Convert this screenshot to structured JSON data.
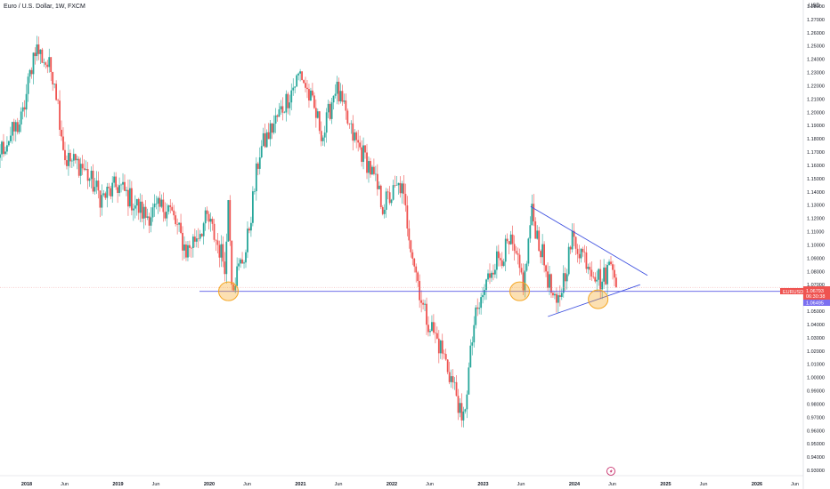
{
  "header": {
    "title": "Euro / U.S. Dollar, 1W, FXCM",
    "currency": "USD"
  },
  "colors": {
    "up": "#26a69a",
    "down": "#ef5350",
    "trendline": "#3f51e0",
    "support": "#5b5be6",
    "highlight": "#f5a623",
    "last_price_bg": "#ef5350",
    "support_label_bg": "#7b6ff0"
  },
  "icons": [
    "lightning-icon"
  ],
  "badges": {
    "symbol": "EURUSD",
    "last_price": "1.06793",
    "countdown": "06:30:38",
    "support_price": "1.06495"
  },
  "chart_data": {
    "type": "candlestick",
    "timeframe": "1W",
    "symbol": "EURUSD",
    "ylim": [
      0.925,
      1.285
    ],
    "y_ticks": [
      "1.28000",
      "1.27000",
      "1.26000",
      "1.25000",
      "1.24000",
      "1.23000",
      "1.22000",
      "1.21000",
      "1.20000",
      "1.19000",
      "1.18000",
      "1.17000",
      "1.16000",
      "1.15000",
      "1.14000",
      "1.13000",
      "1.12000",
      "1.11000",
      "1.10000",
      "1.09000",
      "1.08000",
      "1.07000",
      "1.06000",
      "1.05000",
      "1.04000",
      "1.03000",
      "1.02000",
      "1.01000",
      "1.00000",
      "0.99000",
      "0.98000",
      "0.97000",
      "0.96000",
      "0.95000",
      "0.94000",
      "0.93000"
    ],
    "x_ticks": [
      {
        "label": "2018",
        "year": true
      },
      {
        "label": "Jun",
        "year": false
      },
      {
        "label": "2019",
        "year": true
      },
      {
        "label": "Jun",
        "year": false
      },
      {
        "label": "2020",
        "year": true
      },
      {
        "label": "Jun",
        "year": false
      },
      {
        "label": "2021",
        "year": true
      },
      {
        "label": "Jun",
        "year": false
      },
      {
        "label": "2022",
        "year": true
      },
      {
        "label": "Jun",
        "year": false
      },
      {
        "label": "2023",
        "year": true
      },
      {
        "label": "Jun",
        "year": false
      },
      {
        "label": "2024",
        "year": true
      },
      {
        "label": "Jun",
        "year": false
      },
      {
        "label": "2025",
        "year": true
      },
      {
        "label": "Jun",
        "year": false
      },
      {
        "label": "2026",
        "year": true
      },
      {
        "label": "Jun",
        "year": false
      }
    ],
    "price_path": [
      {
        "t": 2017.15,
        "p": 1.068
      },
      {
        "t": 2017.5,
        "p": 1.143
      },
      {
        "t": 2017.75,
        "p": 1.175
      },
      {
        "t": 2017.95,
        "p": 1.195
      },
      {
        "t": 2018.09,
        "p": 1.25
      },
      {
        "t": 2018.3,
        "p": 1.228
      },
      {
        "t": 2018.42,
        "p": 1.165
      },
      {
        "t": 2018.6,
        "p": 1.16
      },
      {
        "t": 2018.82,
        "p": 1.135
      },
      {
        "t": 2019.0,
        "p": 1.145
      },
      {
        "t": 2019.3,
        "p": 1.122
      },
      {
        "t": 2019.55,
        "p": 1.13
      },
      {
        "t": 2019.75,
        "p": 1.095
      },
      {
        "t": 2019.98,
        "p": 1.12
      },
      {
        "t": 2020.18,
        "p": 1.085
      },
      {
        "t": 2020.21,
        "p": 1.14
      },
      {
        "t": 2020.25,
        "p": 1.07
      },
      {
        "t": 2020.4,
        "p": 1.095
      },
      {
        "t": 2020.55,
        "p": 1.17
      },
      {
        "t": 2020.7,
        "p": 1.19
      },
      {
        "t": 2021.0,
        "p": 1.23
      },
      {
        "t": 2021.25,
        "p": 1.182
      },
      {
        "t": 2021.38,
        "p": 1.22
      },
      {
        "t": 2021.55,
        "p": 1.185
      },
      {
        "t": 2021.75,
        "p": 1.16
      },
      {
        "t": 2021.9,
        "p": 1.13
      },
      {
        "t": 2022.1,
        "p": 1.145
      },
      {
        "t": 2022.25,
        "p": 1.085
      },
      {
        "t": 2022.35,
        "p": 1.05
      },
      {
        "t": 2022.55,
        "p": 1.02
      },
      {
        "t": 2022.72,
        "p": 0.985
      },
      {
        "t": 2022.77,
        "p": 0.96
      },
      {
        "t": 2022.9,
        "p": 1.04
      },
      {
        "t": 2023.1,
        "p": 1.085
      },
      {
        "t": 2023.3,
        "p": 1.1
      },
      {
        "t": 2023.45,
        "p": 1.07
      },
      {
        "t": 2023.53,
        "p": 1.125
      },
      {
        "t": 2023.8,
        "p": 1.05
      },
      {
        "t": 2023.98,
        "p": 1.105
      },
      {
        "t": 2024.3,
        "p": 1.072
      },
      {
        "t": 2024.42,
        "p": 1.09
      },
      {
        "t": 2024.47,
        "p": 1.068
      }
    ],
    "support_level": 1.06495,
    "last_price": 1.06793,
    "last_price_line": 1.068,
    "triangle_upper": [
      {
        "t": 2023.52,
        "p": 1.129
      },
      {
        "t": 2024.8,
        "p": 1.077
      }
    ],
    "triangle_lower": [
      {
        "t": 2023.71,
        "p": 1.046
      },
      {
        "t": 2024.72,
        "p": 1.07
      }
    ],
    "highlight_circles": [
      {
        "t": 2020.21,
        "p": 1.065
      },
      {
        "t": 2023.4,
        "p": 1.065
      },
      {
        "t": 2024.26,
        "p": 1.059
      }
    ]
  }
}
